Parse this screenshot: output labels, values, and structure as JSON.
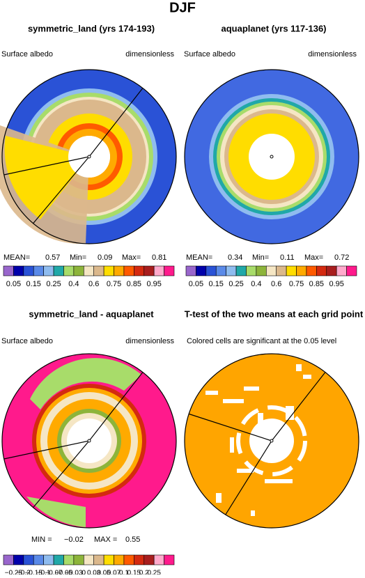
{
  "title": "DJF",
  "panels": [
    {
      "title": "symmetric_land (yrs 174-193)",
      "left_label": "Surface albedo",
      "right_label": "dimensionless",
      "stats": [
        "MEAN=",
        "0.57",
        "Min=",
        "0.09",
        "Max=",
        "0.81"
      ],
      "colorbar": {
        "colors": [
          "#9966cc",
          "#0000aa",
          "#2a52d6",
          "#5a8ae8",
          "#8fbcef",
          "#20a8a8",
          "#a8dc6a",
          "#8db43a",
          "#f5e6c4",
          "#dbb88c",
          "#ffdd00",
          "#ffaa00",
          "#ff5a00",
          "#d42a10",
          "#a81e1e",
          "#ffaacc",
          "#ff1a8c"
        ],
        "labels": [
          "0.05",
          "0.15",
          "0.25",
          "0.4",
          "0.6",
          "0.75",
          "0.85",
          "0.95"
        ]
      }
    },
    {
      "title": "aquaplanet (yrs 117-136)",
      "left_label": "Surface albedo",
      "right_label": "dimensionless",
      "stats": [
        "MEAN=",
        "0.34",
        "Min=",
        "0.11",
        "Max=",
        "0.72"
      ],
      "colorbar": {
        "colors": [
          "#9966cc",
          "#0000aa",
          "#2a52d6",
          "#5a8ae8",
          "#8fbcef",
          "#20a8a8",
          "#a8dc6a",
          "#8db43a",
          "#f5e6c4",
          "#dbb88c",
          "#ffdd00",
          "#ffaa00",
          "#ff5a00",
          "#d42a10",
          "#a81e1e",
          "#ffaacc",
          "#ff1a8c"
        ],
        "labels": [
          "0.05",
          "0.15",
          "0.25",
          "0.4",
          "0.6",
          "0.75",
          "0.85",
          "0.95"
        ]
      }
    },
    {
      "title": "symmetric_land - aquaplanet",
      "left_label": "Surface albedo",
      "right_label": "dimensionless",
      "stats": [
        "MIN =",
        "−0.02",
        "MAX =",
        "0.55"
      ],
      "colorbar": {
        "colors": [
          "#9966cc",
          "#0000aa",
          "#2a52d6",
          "#5a8ae8",
          "#8fbcef",
          "#20a8a8",
          "#a8dc6a",
          "#8db43a",
          "#f5e6c4",
          "#dbb88c",
          "#ffdd00",
          "#ffaa00",
          "#ff5a00",
          "#d42a10",
          "#a81e1e",
          "#ffaacc",
          "#ff1a8c"
        ],
        "labels": [
          "−0.25",
          "−0.2",
          "−0.15",
          "−0.1",
          "−0.07",
          "−0.05",
          "−0.03",
          "0",
          "0.03",
          "0.05",
          "0.07",
          "0.1",
          "0.15",
          "0.2",
          "0.25"
        ]
      }
    },
    {
      "title": "T-test of the two means at each grid point",
      "subtitle": "Colored cells are significant at the 0.05 level"
    }
  ]
}
